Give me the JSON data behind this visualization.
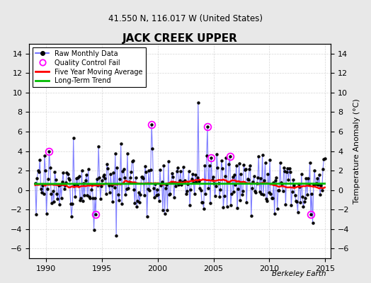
{
  "title": "JACK CREEK UPPER",
  "subtitle": "41.550 N, 116.017 W (United States)",
  "ylabel_right": "Temperature Anomaly (°C)",
  "watermark": "Berkeley Earth",
  "xlim": [
    1988.5,
    2015.5
  ],
  "ylim": [
    -7,
    15
  ],
  "yticks": [
    -6,
    -4,
    -2,
    0,
    2,
    4,
    6,
    8,
    10,
    12,
    14
  ],
  "xticks": [
    1990,
    1995,
    2000,
    2005,
    2010,
    2015
  ],
  "background_color": "#e8e8e8",
  "plot_bg_color": "#ffffff",
  "grid_color": "#cccccc",
  "line_color": "#5555ff",
  "ma_color": "#ff0000",
  "trend_color": "#00bb00",
  "qc_color": "#ff00ff",
  "seed": 17,
  "figsize": [
    5.24,
    4.0
  ],
  "dpi": 100
}
